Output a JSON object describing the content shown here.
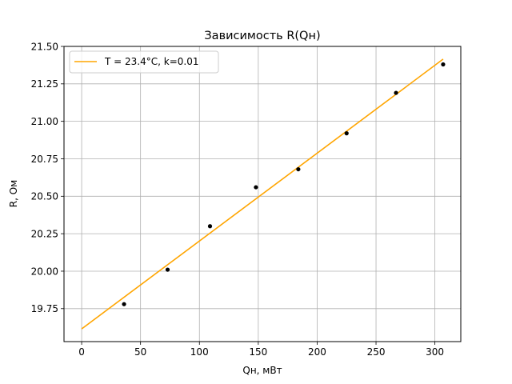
{
  "chart_data": {
    "type": "scatter",
    "title": "Зависимость R(Qн)",
    "xlabel": "Qн, мВт",
    "ylabel": "R, Ом",
    "xlim": [
      -15,
      322
    ],
    "ylim": [
      19.53,
      21.5
    ],
    "xticks": [
      0,
      50,
      100,
      150,
      200,
      250,
      300
    ],
    "yticks": [
      19.75,
      20.0,
      20.25,
      20.5,
      20.75,
      21.0,
      21.25,
      21.5
    ],
    "ytick_labels": [
      "19.75",
      "20.00",
      "20.25",
      "20.50",
      "20.75",
      "21.00",
      "21.25",
      "21.50"
    ],
    "grid": true,
    "legend_position": "upper-left",
    "colors": {
      "fit": "#ffa500",
      "points": "#000000",
      "grid": "#b0b0b0"
    },
    "series": [
      {
        "kind": "scatter",
        "x": [
          36,
          73,
          109,
          148,
          184,
          225,
          267,
          307
        ],
        "y": [
          19.78,
          20.01,
          20.3,
          20.56,
          20.68,
          20.92,
          21.19,
          21.38
        ]
      },
      {
        "kind": "line",
        "name": "T = 23.4°C, k=0.01",
        "x": [
          0,
          307
        ],
        "y": [
          19.615,
          21.415
        ]
      }
    ]
  }
}
